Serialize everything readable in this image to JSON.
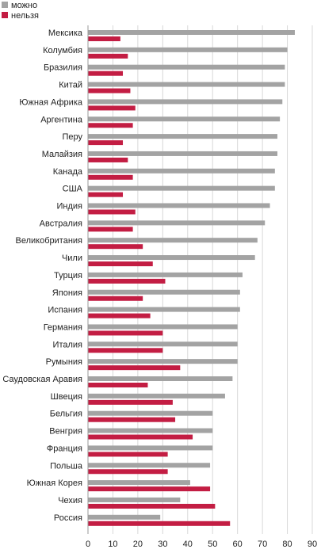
{
  "chart_data": {
    "type": "bar",
    "orientation": "horizontal",
    "title": "",
    "xlabel": "",
    "ylabel": "",
    "xlim": [
      0,
      90
    ],
    "x_ticks": [
      0,
      10,
      20,
      30,
      40,
      50,
      60,
      70,
      80,
      90
    ],
    "grid": true,
    "legend_position": "top-left",
    "categories": [
      "Мексика",
      "Колумбия",
      "Бразилия",
      "Китай",
      "Южная Африка",
      "Аргентина",
      "Перу",
      "Малайзия",
      "Канада",
      "США",
      "Индия",
      "Австралия",
      "Великобритания",
      "Чили",
      "Турция",
      "Япония",
      "Испания",
      "Германия",
      "Италия",
      "Румыния",
      "Саудовская Аравия",
      "Швеция",
      "Бельгия",
      "Венгрия",
      "Франция",
      "Польша",
      "Южная Корея",
      "Чехия",
      "Россия"
    ],
    "series": [
      {
        "name": "можно",
        "color": "#a3a3a3",
        "values": [
          83,
          80,
          79,
          79,
          78,
          77,
          76,
          76,
          75,
          75,
          73,
          71,
          68,
          67,
          62,
          61,
          61,
          60,
          60,
          60,
          58,
          55,
          50,
          50,
          50,
          49,
          41,
          37,
          29
        ]
      },
      {
        "name": "нельзя",
        "color": "#c31d43",
        "values": [
          13,
          16,
          14,
          17,
          19,
          18,
          14,
          16,
          18,
          14,
          19,
          18,
          22,
          26,
          31,
          22,
          25,
          30,
          30,
          37,
          24,
          34,
          35,
          42,
          32,
          32,
          49,
          51,
          57
        ]
      }
    ]
  }
}
